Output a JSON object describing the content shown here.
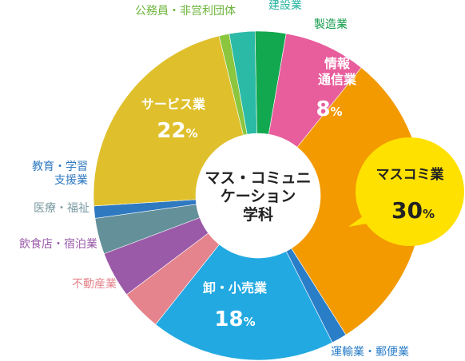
{
  "chart_data": {
    "type": "pie",
    "variant": "donut",
    "center_label": [
      "マス・コミュニ",
      "ケーション",
      "学科"
    ],
    "unit": "%",
    "slices": [
      {
        "name": "公務員・非営利団体",
        "value": 1,
        "color": "#8cc63f",
        "label_lines": [
          "公務員・非営利団体"
        ],
        "label_color": "#6bb33a",
        "shown": ""
      },
      {
        "name": "建設業",
        "value": 2.5,
        "color": "#2bbaa6",
        "label_lines": [
          "建設業"
        ],
        "label_color": "#2bb5a0",
        "shown": ""
      },
      {
        "name": "製造業",
        "value": 3,
        "color": "#12a84f",
        "label_lines": [
          "製造業"
        ],
        "label_color": "#129a4a",
        "shown": ""
      },
      {
        "name": "情報通信業",
        "value": 8,
        "color": "#e85d9c",
        "label_lines": [
          "情報",
          "通信業"
        ],
        "label_color": "#ffffff",
        "shown": "8"
      },
      {
        "name": "マスコミ業",
        "value": 30,
        "color": "#f39a00",
        "label_lines": [
          "マスコミ業"
        ],
        "label_color": "#222222",
        "shown": "30"
      },
      {
        "name": "運輸業・郵便業",
        "value": 1.5,
        "color": "#2a7ec8",
        "label_lines": [
          "運輸業・郵便業"
        ],
        "label_color": "#2a7ec8",
        "shown": ""
      },
      {
        "name": "卸・小売業",
        "value": 18,
        "color": "#23a9e1",
        "label_lines": [
          "卸・小売業"
        ],
        "label_color": "#ffffff",
        "shown": "18"
      },
      {
        "name": "不動産業",
        "value": 4,
        "color": "#e5848c",
        "label_lines": [
          "不動産業"
        ],
        "label_color": "#e5848c",
        "shown": ""
      },
      {
        "name": "飲食店・宿泊業",
        "value": 4.5,
        "color": "#9a5aa8",
        "label_lines": [
          "飲食店・宿泊業"
        ],
        "label_color": "#9a5aa8",
        "shown": ""
      },
      {
        "name": "医療・福祉",
        "value": 3.5,
        "color": "#64909a",
        "label_lines": [
          "医療・福祉"
        ],
        "label_color": "#7a9aa2",
        "shown": ""
      },
      {
        "name": "教育・学習支援業",
        "value": 1.2,
        "color": "#2f79c1",
        "label_lines": [
          "教育・学習",
          "支援業"
        ],
        "label_color": "#2f79c1",
        "shown": ""
      },
      {
        "name": "サービス業",
        "value": 22,
        "color": "#dfc02c",
        "label_lines": [
          "サービス業"
        ],
        "label_color": "#ffffff",
        "shown": "22"
      }
    ],
    "callout": {
      "slice": "マスコミ業",
      "color": "#ffe100"
    },
    "legend": "none"
  }
}
